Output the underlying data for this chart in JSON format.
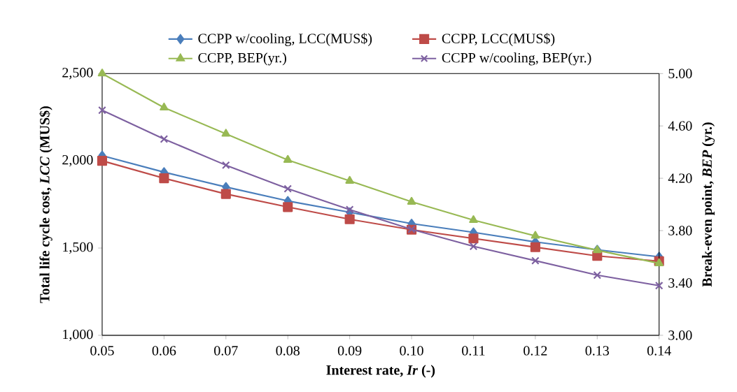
{
  "chart_data": {
    "type": "line",
    "xlabel": "Interest rate, *Ir* (-)",
    "ylabel": "Total life cycle cost, *LCC* (MUS$)",
    "y2label": "Break-even point, *BEP* (yr.)",
    "x": [
      0.05,
      0.06,
      0.07,
      0.08,
      0.09,
      0.1,
      0.11,
      0.12,
      0.13,
      0.14
    ],
    "series": [
      {
        "name": "CCPP w/cooling, LCC(MUS$)",
        "color": "#4a7ebb",
        "marker": "diamond",
        "values": [
          2030,
          1935,
          1850,
          1770,
          1705,
          1640,
          1590,
          1535,
          1490,
          1450
        ]
      },
      {
        "name": "CCPP, LCC(MUS$)",
        "color": "#be4b48",
        "marker": "square",
        "values": [
          2000,
          1900,
          1810,
          1735,
          1665,
          1605,
          1555,
          1505,
          1455,
          1425
        ]
      },
      {
        "name": "CCPP, BEP(yr.)",
        "color": "#98b954",
        "marker": "triangle",
        "axis": "y2",
        "values": [
          5.0,
          4.74,
          4.54,
          4.34,
          4.18,
          4.02,
          3.88,
          3.76,
          3.65,
          3.55
        ]
      },
      {
        "name": "CCPP w/cooling, BEP(yr.)",
        "color": "#7d60a0",
        "marker": "cross",
        "axis": "y2",
        "values": [
          4.72,
          4.5,
          4.3,
          4.12,
          3.96,
          3.81,
          3.68,
          3.57,
          3.46,
          3.38
        ]
      }
    ],
    "xlim": [
      0.05,
      0.14
    ],
    "xticks": [
      {
        "value": 0.05,
        "label": "0.05"
      },
      {
        "value": 0.06,
        "label": "0.06"
      },
      {
        "value": 0.07,
        "label": "0.07"
      },
      {
        "value": 0.08,
        "label": "0.08"
      },
      {
        "value": 0.09,
        "label": "0.09"
      },
      {
        "value": 0.1,
        "label": "0.10"
      },
      {
        "value": 0.11,
        "label": "0.11"
      },
      {
        "value": 0.12,
        "label": "0.12"
      },
      {
        "value": 0.13,
        "label": "0.13"
      },
      {
        "value": 0.14,
        "label": "0.14"
      }
    ],
    "ylim": [
      1000,
      2500
    ],
    "yticks": [
      {
        "value": 1000,
        "label": "1,000"
      },
      {
        "value": 1500,
        "label": "1,500"
      },
      {
        "value": 2000,
        "label": "2,000"
      },
      {
        "value": 2500,
        "label": "2,500"
      }
    ],
    "y2lim": [
      3.0,
      5.0
    ],
    "y2ticks": [
      {
        "value": 3.0,
        "label": "3.00"
      },
      {
        "value": 3.4,
        "label": "3.40"
      },
      {
        "value": 3.8,
        "label": "3.80"
      },
      {
        "value": 4.2,
        "label": "4.20"
      },
      {
        "value": 4.6,
        "label": "4.60"
      },
      {
        "value": 5.0,
        "label": "5.00"
      }
    ],
    "legend": "top",
    "grid": false,
    "line_style": "solid"
  }
}
